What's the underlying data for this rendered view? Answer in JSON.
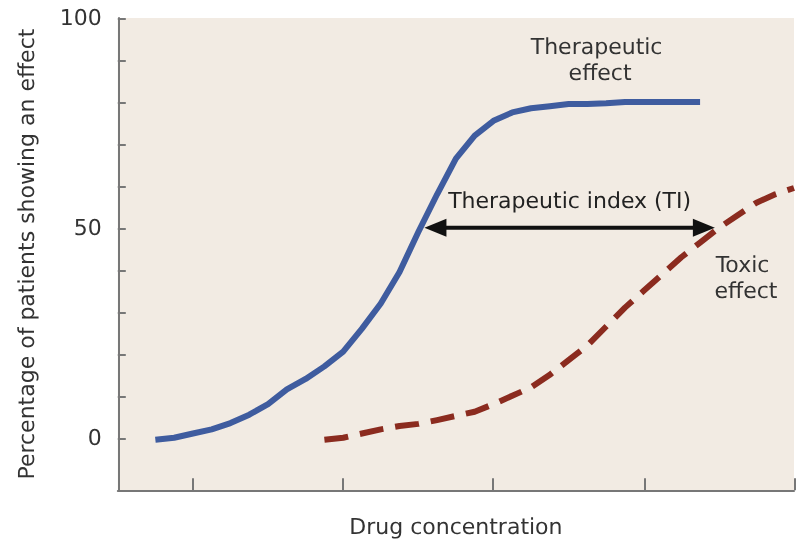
{
  "chart_data": {
    "type": "line",
    "xlabel": "Drug concentration",
    "ylabel": "Percentage of patients showing an effect",
    "categories": [
      null,
      null,
      null,
      null,
      null,
      null,
      null,
      null,
      null,
      null,
      null,
      null,
      null,
      null,
      null,
      null,
      null,
      null,
      null,
      null,
      null,
      null,
      null,
      null,
      null,
      null,
      null,
      null,
      null,
      null,
      null,
      null,
      null,
      null,
      null,
      null,
      null
    ],
    "series": [
      {
        "name": "Therapeutic effect",
        "color": "#3f5c9f",
        "line_style": "solid",
        "values": [
          null,
          null,
          -0.5,
          0,
          1,
          2,
          3.5,
          5.5,
          8,
          11.5,
          14,
          17,
          20.5,
          26,
          32,
          39.5,
          49,
          58,
          66.5,
          72,
          75.5,
          77.5,
          78.5,
          79,
          79.5,
          79.5,
          79.7,
          80,
          80,
          80,
          80,
          80,
          null,
          null,
          null,
          null,
          null
        ]
      },
      {
        "name": "Toxic effect",
        "color": "#8b2b1f",
        "line_style": "dashed",
        "values": [
          null,
          null,
          null,
          null,
          null,
          null,
          null,
          null,
          null,
          null,
          null,
          -0.5,
          0,
          1,
          2,
          2.8,
          3.3,
          4.2,
          5.2,
          6.2,
          8,
          10,
          12,
          15,
          18.5,
          22,
          26.5,
          31,
          35,
          39,
          43,
          46.5,
          50,
          53,
          56,
          58,
          59.5
        ]
      }
    ],
    "ylim": [
      -12.5,
      100
    ],
    "yticks": [
      0,
      {
        "value": 10,
        "label": null
      },
      {
        "value": 20,
        "label": null
      },
      {
        "value": 30,
        "label": null
      },
      {
        "value": 40,
        "label": null
      },
      50,
      {
        "value": 60,
        "label": null
      },
      {
        "value": 70,
        "label": null
      },
      {
        "value": 80,
        "label": null
      },
      {
        "value": 90,
        "label": null
      },
      100
    ],
    "annotations": [
      "Therapeutic index (TI)"
    ],
    "grid": false,
    "legend": false,
    "marker": "none"
  }
}
